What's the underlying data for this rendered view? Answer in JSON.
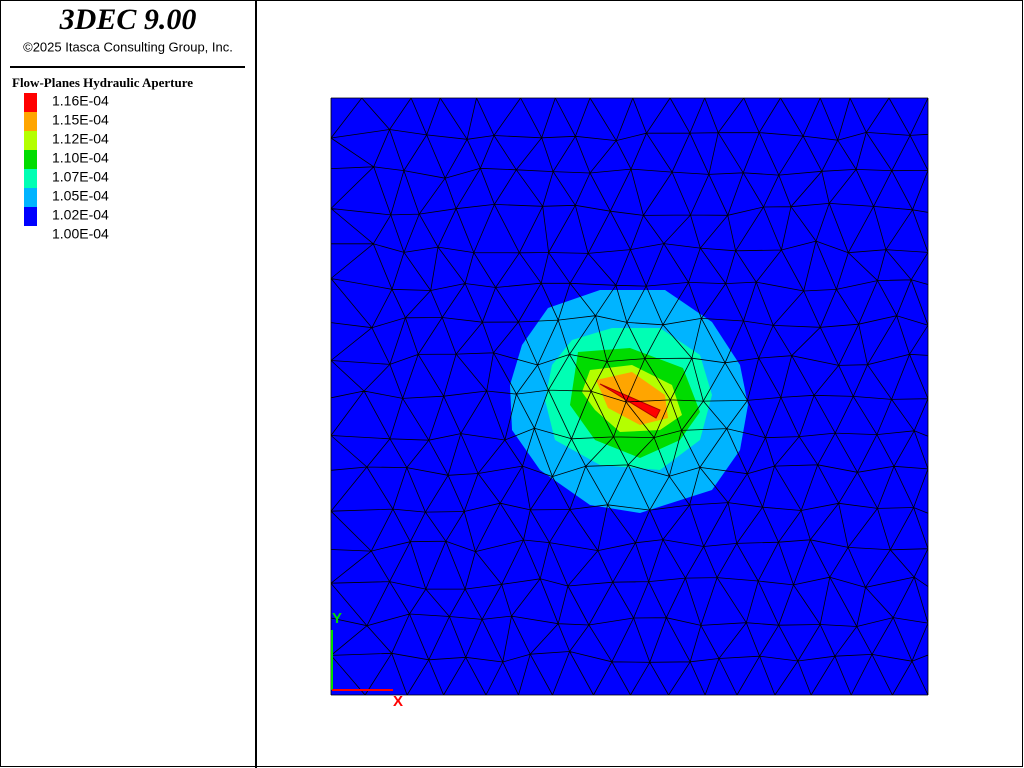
{
  "header": {
    "title": "3DEC 9.00",
    "copyright": "©2025 Itasca Consulting Group, Inc."
  },
  "legend": {
    "title": "Flow-Planes Hydraulic Aperture",
    "labels": [
      "1.16E-04",
      "1.15E-04",
      "1.12E-04",
      "1.10E-04",
      "1.07E-04",
      "1.05E-04",
      "1.02E-04",
      "1.00E-04"
    ],
    "band_colors": [
      "#ff0000",
      "#ffa500",
      "#b4ff00",
      "#00dc00",
      "#00ffb4",
      "#00b4ff",
      "#0000ff"
    ]
  },
  "axes": {
    "y_label": "Y",
    "x_label": "X"
  }
}
